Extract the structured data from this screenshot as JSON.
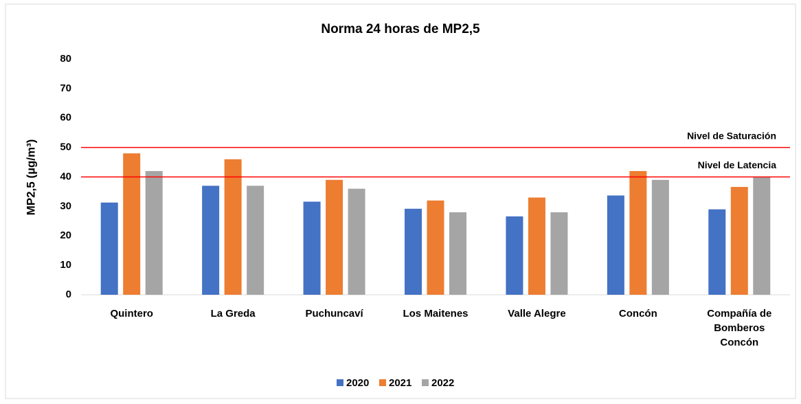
{
  "chart_data": {
    "type": "bar",
    "title": "Norma  24 horas de MP2,5",
    "y_label": "MP2,5 (µg/m³)",
    "categories": [
      "Quintero",
      "La Greda",
      "Puchuncaví",
      "Los Maitenes",
      "Valle Alegre",
      "Concón",
      "Compañía de Bomberos Concón"
    ],
    "series": [
      {
        "name": "2020",
        "color": "#4472c4",
        "values": [
          31.3,
          37,
          31.6,
          29.2,
          26.6,
          33.7,
          29
        ]
      },
      {
        "name": "2021",
        "color": "#ed7d31",
        "values": [
          48,
          46,
          39,
          32,
          33,
          42,
          36.6
        ]
      },
      {
        "name": "2022",
        "color": "#a5a5a5",
        "values": [
          42,
          37,
          36,
          28,
          28,
          39,
          40
        ]
      }
    ],
    "reference_lines": [
      {
        "value": 50,
        "label": "Nivel de Saturación",
        "color": "#ff0000"
      },
      {
        "value": 40,
        "label": "Nivel de Latencia",
        "color": "#ff0000"
      }
    ],
    "ylim": [
      0,
      80
    ],
    "yticks": [
      0,
      10,
      20,
      30,
      40,
      50,
      60,
      70,
      80
    ],
    "grid": false,
    "legend": "bottom"
  }
}
